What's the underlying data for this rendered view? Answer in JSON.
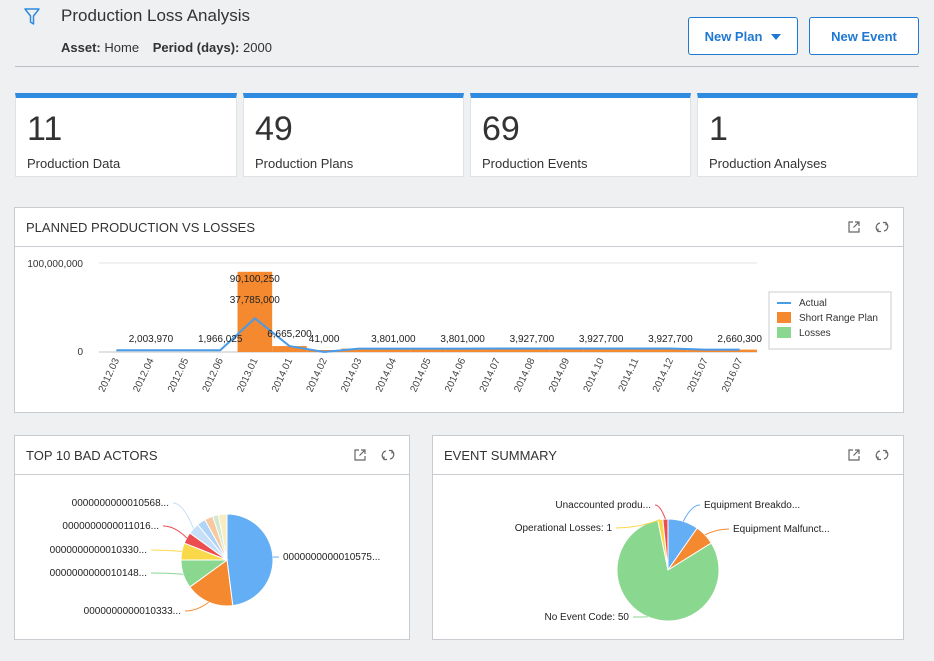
{
  "header": {
    "title": "Production Loss Analysis",
    "asset_label": "Asset:",
    "asset_value": "Home",
    "period_label": "Period (days):",
    "period_value": "2000",
    "new_plan_label": "New Plan",
    "new_event_label": "New Event"
  },
  "cards": [
    {
      "value": "11",
      "label": "Production Data"
    },
    {
      "value": "49",
      "label": "Production Plans"
    },
    {
      "value": "69",
      "label": "Production Events"
    },
    {
      "value": "1",
      "label": "Production Analyses"
    }
  ],
  "colors": {
    "accent": "#2e8be0",
    "actual": "#4a9be8",
    "plan": "#f4892f",
    "losses": "#8ad790"
  },
  "icons": [
    "filter-icon",
    "chevron-down-icon",
    "expand-icon",
    "refresh-icon"
  ],
  "panels": {
    "production_title": "PLANNED PRODUCTION VS LOSSES",
    "bad_actors_title": "TOP 10 BAD ACTORS",
    "event_summary_title": "EVENT SUMMARY"
  },
  "chart_data": [
    {
      "type": "bar",
      "categories": [
        "2012.03",
        "2012.04",
        "2012.05",
        "2012.06",
        "2013.01",
        "2014.01",
        "2014.02",
        "2014.03",
        "2014.04",
        "2014.05",
        "2014.06",
        "2014.07",
        "2014.08",
        "2014.09",
        "2014.10",
        "2014.11",
        "2014.12",
        "2015.07",
        "2016.07"
      ],
      "ylim": [
        0,
        100000000
      ],
      "yticks": [
        "0",
        "100,000,000"
      ],
      "legend_position": "right",
      "series": [
        {
          "name": "Actual",
          "type": "line",
          "values": [
            2003970,
            2003970,
            2003970,
            1966025,
            37785000,
            6665200,
            41000,
            3801000,
            3801000,
            3801000,
            3801000,
            3927700,
            3927700,
            3927700,
            3927700,
            3927700,
            3927700,
            2660300,
            2660300
          ]
        },
        {
          "name": "Short Range Plan",
          "type": "bar",
          "values": [
            0,
            0,
            0,
            0,
            90100250,
            6665200,
            41000,
            3801000,
            3801000,
            3801000,
            3801000,
            3927700,
            3927700,
            3927700,
            3927700,
            3927700,
            3927700,
            2660300,
            2660300
          ]
        },
        {
          "name": "Losses",
          "type": "bar",
          "values": [
            0,
            0,
            0,
            0,
            0,
            0,
            0,
            0,
            0,
            0,
            0,
            0,
            0,
            0,
            0,
            0,
            0,
            0,
            0
          ]
        }
      ],
      "data_labels": [
        {
          "category": "2012.04",
          "text": "2,003,970"
        },
        {
          "category": "2012.06",
          "text": "1,966,025"
        },
        {
          "category": "2013.01",
          "text": "90,100,250"
        },
        {
          "category": "2013.01",
          "text": "37,785,000"
        },
        {
          "category": "2014.01",
          "text": "6,665,200"
        },
        {
          "category": "2014.02",
          "text": "41,000"
        },
        {
          "category": "2014.04",
          "text": "3,801,000"
        },
        {
          "category": "2014.06",
          "text": "3,801,000"
        },
        {
          "category": "2014.08",
          "text": "3,927,700"
        },
        {
          "category": "2014.10",
          "text": "3,927,700"
        },
        {
          "category": "2014.12",
          "text": "3,927,700"
        },
        {
          "category": "2016.07",
          "text": "2,660,300"
        }
      ]
    },
    {
      "type": "pie",
      "slices": [
        {
          "label": "0000000000010575...",
          "value": 48,
          "color": "#64aef5"
        },
        {
          "label": "0000000000010333...",
          "value": 17,
          "color": "#f4892f"
        },
        {
          "label": "0000000000010148...",
          "value": 10,
          "color": "#8ad790"
        },
        {
          "label": "0000000000010330...",
          "value": 6,
          "color": "#f9d94a"
        },
        {
          "label": "0000000000011016...",
          "value": 4,
          "color": "#ec4d51"
        },
        {
          "label": "0000000000010568...",
          "value": 4,
          "color": "#c6def7"
        },
        {
          "label": "",
          "value": 3,
          "color": "#aed4f7"
        },
        {
          "label": "",
          "value": 3,
          "color": "#f7c9a0"
        },
        {
          "label": "",
          "value": 2,
          "color": "#cfe8cf"
        },
        {
          "label": "",
          "value": 3,
          "color": "#f7ecc2"
        }
      ]
    },
    {
      "type": "pie",
      "slices": [
        {
          "label": "Equipment Breakdo...",
          "value": 6,
          "color": "#64aef5"
        },
        {
          "label": "Equipment Malfunct...",
          "value": 4,
          "color": "#f4892f"
        },
        {
          "label": "No Event Code: 50",
          "value": 50,
          "color": "#8ad790"
        },
        {
          "label": "Operational Losses: 1",
          "value": 1,
          "color": "#f9d94a"
        },
        {
          "label": "Unaccounted produ...",
          "value": 1,
          "color": "#ec4d51"
        }
      ]
    }
  ]
}
